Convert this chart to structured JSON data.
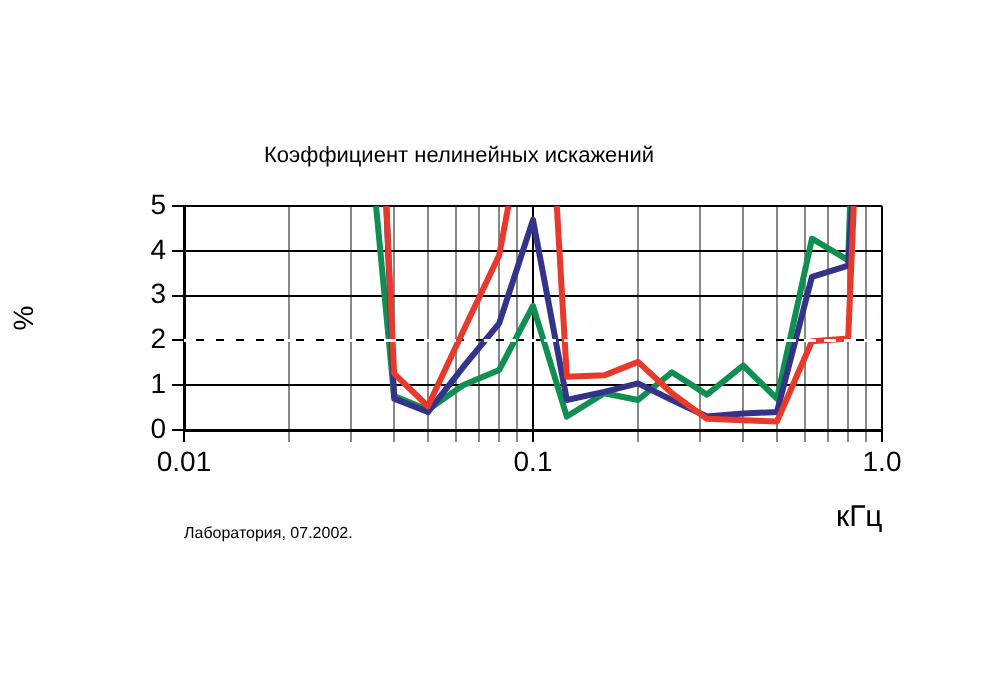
{
  "chart_data": {
    "type": "line",
    "title": "Коэффициент нелинейных искажений",
    "xlabel": "кГц",
    "ylabel": "%",
    "annotations": [
      "Лаборатория, 07.2002."
    ],
    "log": "x",
    "xlim": [
      0.01,
      1.0
    ],
    "xticks": [
      0.01,
      {
        "value": 0.02,
        "label": null
      },
      {
        "value": 0.03,
        "label": null
      },
      {
        "value": 0.04,
        "label": null
      },
      {
        "value": 0.05,
        "label": null
      },
      {
        "value": 0.06,
        "label": null
      },
      {
        "value": 0.07,
        "label": null
      },
      {
        "value": 0.08,
        "label": null
      },
      {
        "value": 0.09,
        "label": null
      },
      0.1,
      {
        "value": 0.2,
        "label": null
      },
      {
        "value": 0.3,
        "label": null
      },
      {
        "value": 0.4,
        "label": null
      },
      {
        "value": 0.5,
        "label": null
      },
      {
        "value": 0.6,
        "label": null
      },
      {
        "value": 0.7,
        "label": null
      },
      {
        "value": 0.8,
        "label": null
      },
      {
        "value": 0.9,
        "label": null
      },
      {
        "value": 1.0,
        "label": "1.0"
      }
    ],
    "ylim": [
      0,
      5
    ],
    "yticks": [
      0,
      1,
      2,
      3,
      4,
      5
    ],
    "grid": true,
    "legend": false,
    "marker": "none",
    "line_style": "solid",
    "ref_lines": [
      {
        "axis": "y",
        "value": 2,
        "color": "#ffffff",
        "line_style": "dashed"
      }
    ],
    "series": [
      {
        "color": "#e8392a",
        "x": [
          0.038,
          0.04,
          0.05,
          0.063,
          0.08,
          0.085,
          0.1,
          0.117,
          0.125,
          0.16,
          0.2,
          0.25,
          0.315,
          0.4,
          0.5,
          0.63,
          0.8,
          0.83
        ],
        "values": [
          5,
          1.26,
          0.53,
          2.2,
          3.9,
          5,
          null,
          5,
          1.19,
          1.22,
          1.52,
          0.82,
          0.25,
          0.22,
          0.19,
          1.98,
          2.04,
          5
        ]
      },
      {
        "color": "#33338a",
        "x": [
          0.038,
          0.04,
          0.05,
          0.063,
          0.08,
          0.1,
          0.125,
          0.16,
          0.2,
          0.25,
          0.315,
          0.4,
          0.5,
          0.63,
          0.8,
          0.82
        ],
        "values": [
          5,
          0.7,
          0.4,
          1.4,
          2.38,
          4.69,
          0.67,
          0.85,
          1.04,
          0.67,
          0.3,
          0.37,
          0.4,
          3.42,
          3.67,
          5
        ]
      },
      {
        "color": "#109050",
        "x": [
          0.0355,
          0.04,
          0.05,
          0.063,
          0.08,
          0.1,
          0.125,
          0.16,
          0.2,
          0.25,
          0.315,
          0.4,
          0.5,
          0.63,
          0.8,
          0.81
        ],
        "values": [
          5,
          0.76,
          0.45,
          1.0,
          1.34,
          2.77,
          0.3,
          0.82,
          0.67,
          1.29,
          0.79,
          1.44,
          0.7,
          4.27,
          3.79,
          5
        ]
      }
    ]
  }
}
